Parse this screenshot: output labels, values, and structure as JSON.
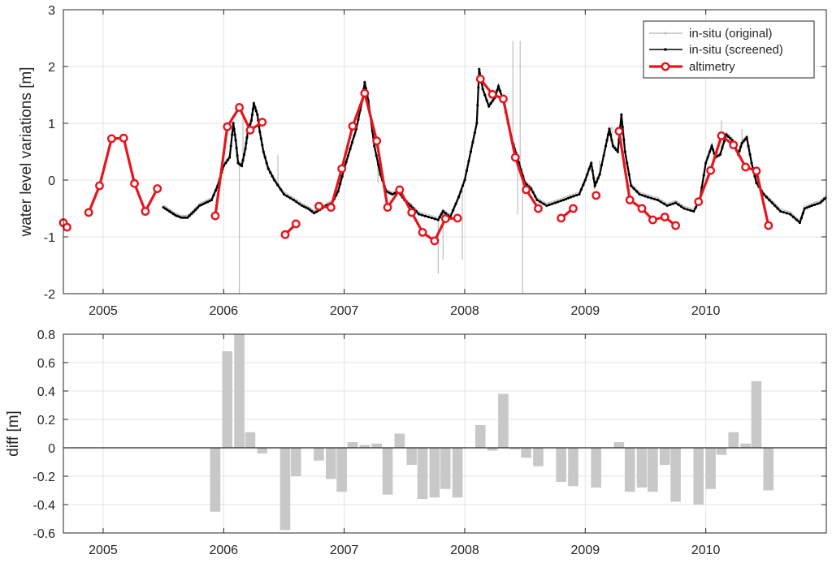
{
  "chart_data": [
    {
      "type": "line",
      "ylabel": "water level variations [m]",
      "xlim": [
        2004.67,
        2011.0
      ],
      "ylim": [
        -2,
        3
      ],
      "x_ticks": [
        2005,
        2006,
        2007,
        2008,
        2009,
        2010
      ],
      "x_tick_labels": [
        "2005",
        "2006",
        "2007",
        "2008",
        "2009",
        "2010"
      ],
      "y_ticks": [
        -2,
        -1,
        0,
        1,
        2,
        3
      ],
      "y_tick_labels": [
        "-2",
        "-1",
        "0",
        "1",
        "2",
        "3"
      ],
      "grid": true,
      "legend_position": "top-right",
      "legend": [
        "in-situ (original)",
        "in-situ (screened)",
        "altimetry"
      ],
      "colors": {
        "original": "#bdbdbd",
        "screened": "#000000",
        "altimetry": "#e8141c"
      },
      "series": [
        {
          "name": "in-situ (screened)",
          "points": [
            [
              2005.5,
              -0.48
            ],
            [
              2005.55,
              -0.55
            ],
            [
              2005.6,
              -0.62
            ],
            [
              2005.65,
              -0.66
            ],
            [
              2005.7,
              -0.66
            ],
            [
              2005.75,
              -0.56
            ],
            [
              2005.8,
              -0.45
            ],
            [
              2005.85,
              -0.4
            ],
            [
              2005.9,
              -0.35
            ],
            [
              2005.95,
              -0.1
            ],
            [
              2006.0,
              0.25
            ],
            [
              2006.05,
              0.4
            ],
            [
              2006.08,
              1.0
            ],
            [
              2006.1,
              0.7
            ],
            [
              2006.12,
              0.3
            ],
            [
              2006.15,
              0.25
            ],
            [
              2006.18,
              0.55
            ],
            [
              2006.2,
              0.85
            ],
            [
              2006.23,
              1.05
            ],
            [
              2006.25,
              1.35
            ],
            [
              2006.28,
              1.15
            ],
            [
              2006.3,
              0.85
            ],
            [
              2006.33,
              0.5
            ],
            [
              2006.37,
              0.2
            ],
            [
              2006.42,
              0.0
            ],
            [
              2006.5,
              -0.25
            ],
            [
              2006.58,
              -0.35
            ],
            [
              2006.65,
              -0.45
            ],
            [
              2006.7,
              -0.5
            ],
            [
              2006.75,
              -0.58
            ],
            [
              2006.8,
              -0.52
            ],
            [
              2006.85,
              -0.45
            ],
            [
              2006.9,
              -0.4
            ],
            [
              2006.95,
              -0.2
            ],
            [
              2007.0,
              0.2
            ],
            [
              2007.05,
              0.55
            ],
            [
              2007.1,
              0.9
            ],
            [
              2007.15,
              1.4
            ],
            [
              2007.17,
              1.72
            ],
            [
              2007.2,
              1.4
            ],
            [
              2007.25,
              0.6
            ],
            [
              2007.3,
              0.1
            ],
            [
              2007.35,
              -0.2
            ],
            [
              2007.4,
              -0.25
            ],
            [
              2007.45,
              -0.2
            ],
            [
              2007.5,
              -0.35
            ],
            [
              2007.55,
              -0.45
            ],
            [
              2007.62,
              -0.6
            ],
            [
              2007.7,
              -0.65
            ],
            [
              2007.78,
              -0.7
            ],
            [
              2007.82,
              -0.55
            ],
            [
              2007.88,
              -0.65
            ],
            [
              2007.95,
              -0.3
            ],
            [
              2008.0,
              0.0
            ],
            [
              2008.05,
              0.5
            ],
            [
              2008.1,
              1.0
            ],
            [
              2008.12,
              1.95
            ],
            [
              2008.15,
              1.6
            ],
            [
              2008.2,
              1.3
            ],
            [
              2008.25,
              1.45
            ],
            [
              2008.28,
              1.65
            ],
            [
              2008.32,
              1.4
            ],
            [
              2008.38,
              0.8
            ],
            [
              2008.45,
              0.3
            ],
            [
              2008.5,
              -0.05
            ],
            [
              2008.55,
              -0.15
            ],
            [
              2008.6,
              -0.35
            ],
            [
              2008.68,
              -0.45
            ],
            [
              2008.75,
              -0.4
            ],
            [
              2008.82,
              -0.35
            ],
            [
              2008.88,
              -0.3
            ],
            [
              2008.95,
              -0.25
            ],
            [
              2009.0,
              0.0
            ],
            [
              2009.05,
              0.3
            ],
            [
              2009.08,
              -0.1
            ],
            [
              2009.12,
              0.1
            ],
            [
              2009.17,
              0.6
            ],
            [
              2009.2,
              0.9
            ],
            [
              2009.23,
              0.6
            ],
            [
              2009.27,
              0.5
            ],
            [
              2009.3,
              1.15
            ],
            [
              2009.33,
              0.5
            ],
            [
              2009.38,
              -0.1
            ],
            [
              2009.45,
              -0.25
            ],
            [
              2009.52,
              -0.3
            ],
            [
              2009.6,
              -0.35
            ],
            [
              2009.68,
              -0.45
            ],
            [
              2009.75,
              -0.4
            ],
            [
              2009.82,
              -0.5
            ],
            [
              2009.9,
              -0.55
            ],
            [
              2009.95,
              -0.35
            ],
            [
              2010.0,
              0.3
            ],
            [
              2010.05,
              0.6
            ],
            [
              2010.08,
              0.4
            ],
            [
              2010.12,
              0.45
            ],
            [
              2010.17,
              0.8
            ],
            [
              2010.22,
              0.7
            ],
            [
              2010.27,
              0.45
            ],
            [
              2010.3,
              0.65
            ],
            [
              2010.34,
              0.75
            ],
            [
              2010.38,
              0.3
            ],
            [
              2010.42,
              -0.05
            ],
            [
              2010.48,
              -0.25
            ],
            [
              2010.55,
              -0.4
            ],
            [
              2010.62,
              -0.55
            ],
            [
              2010.7,
              -0.6
            ],
            [
              2010.78,
              -0.75
            ],
            [
              2010.82,
              -0.5
            ],
            [
              2010.88,
              -0.45
            ],
            [
              2010.95,
              -0.4
            ],
            [
              2011.0,
              -0.3
            ]
          ]
        },
        {
          "name": "in-situ (original)",
          "spikes": [
            [
              2006.08,
              0.9
            ],
            [
              2006.13,
              -2.0
            ],
            [
              2006.16,
              1.1
            ],
            [
              2006.45,
              0.45
            ],
            [
              2006.9,
              -0.4
            ],
            [
              2007.1,
              0.8
            ],
            [
              2007.28,
              -0.05
            ],
            [
              2007.45,
              -0.1
            ],
            [
              2007.78,
              -1.65
            ],
            [
              2007.82,
              -1.4
            ],
            [
              2007.98,
              -1.4
            ],
            [
              2008.4,
              2.45
            ],
            [
              2008.44,
              -0.6
            ],
            [
              2008.46,
              2.45
            ],
            [
              2008.48,
              -2.0
            ],
            [
              2009.12,
              0.35
            ],
            [
              2009.22,
              0.95
            ],
            [
              2009.3,
              1.15
            ],
            [
              2010.13,
              1.05
            ],
            [
              2010.3,
              0.9
            ],
            [
              2010.42,
              0.15
            ]
          ]
        },
        {
          "name": "altimetry",
          "segments": [
            [
              [
                2004.67,
                -0.75
              ],
              [
                2004.7,
                -0.83
              ]
            ],
            [
              [
                2004.88,
                -0.57
              ],
              [
                2004.97,
                -0.1
              ],
              [
                2005.07,
                0.73
              ],
              [
                2005.17,
                0.74
              ],
              [
                2005.26,
                -0.06
              ],
              [
                2005.35,
                -0.55
              ],
              [
                2005.45,
                -0.15
              ]
            ],
            [
              [
                2005.93,
                -0.63
              ],
              [
                2006.03,
                0.94
              ],
              [
                2006.13,
                1.28
              ],
              [
                2006.22,
                0.88
              ],
              [
                2006.32,
                1.02
              ]
            ],
            [
              [
                2006.51,
                -0.96
              ],
              [
                2006.6,
                -0.77
              ]
            ],
            [
              [
                2006.79,
                -0.46
              ],
              [
                2006.89,
                -0.48
              ],
              [
                2006.98,
                0.2
              ],
              [
                2007.07,
                0.95
              ],
              [
                2007.17,
                1.53
              ],
              [
                2007.27,
                0.69
              ],
              [
                2007.36,
                -0.48
              ],
              [
                2007.46,
                -0.17
              ],
              [
                2007.56,
                -0.57
              ],
              [
                2007.65,
                -0.92
              ],
              [
                2007.75,
                -1.07
              ],
              [
                2007.84,
                -0.68
              ],
              [
                2007.94,
                -0.67
              ]
            ],
            [
              [
                2008.13,
                1.78
              ],
              [
                2008.23,
                1.51
              ],
              [
                2008.32,
                1.43
              ],
              [
                2008.42,
                0.4
              ],
              [
                2008.51,
                -0.17
              ],
              [
                2008.61,
                -0.5
              ]
            ],
            [
              [
                2008.8,
                -0.67
              ],
              [
                2008.9,
                -0.5
              ]
            ],
            [
              [
                2009.09,
                -0.27
              ]
            ],
            [
              [
                2009.28,
                0.86
              ],
              [
                2009.37,
                -0.35
              ],
              [
                2009.47,
                -0.5
              ],
              [
                2009.56,
                -0.7
              ],
              [
                2009.66,
                -0.65
              ],
              [
                2009.75,
                -0.8
              ]
            ],
            [
              [
                2009.94,
                -0.38
              ],
              [
                2010.04,
                0.17
              ],
              [
                2010.13,
                0.78
              ],
              [
                2010.23,
                0.62
              ],
              [
                2010.33,
                0.23
              ],
              [
                2010.42,
                0.16
              ],
              [
                2010.52,
                -0.8
              ]
            ]
          ]
        }
      ]
    },
    {
      "type": "bar",
      "ylabel": "diff [m]",
      "xlim": [
        2004.67,
        2011.0
      ],
      "ylim": [
        -0.6,
        0.8
      ],
      "x_ticks": [
        2005,
        2006,
        2007,
        2008,
        2009,
        2010
      ],
      "x_tick_labels": [
        "2005",
        "2006",
        "2007",
        "2008",
        "2009",
        "2010"
      ],
      "y_ticks": [
        -0.6,
        -0.4,
        -0.2,
        0,
        0.2,
        0.4,
        0.6,
        0.8
      ],
      "y_tick_labels": [
        "-0.6",
        "-0.4",
        "-0.2",
        "0",
        "0.2",
        "0.4",
        "0.6",
        "0.8"
      ],
      "grid": true,
      "bar_color": "#c8c8c8",
      "x": [
        2005.93,
        2006.03,
        2006.13,
        2006.22,
        2006.32,
        2006.51,
        2006.6,
        2006.79,
        2006.89,
        2006.98,
        2007.07,
        2007.17,
        2007.27,
        2007.36,
        2007.46,
        2007.56,
        2007.65,
        2007.75,
        2007.84,
        2007.94,
        2008.13,
        2008.23,
        2008.32,
        2008.42,
        2008.51,
        2008.61,
        2008.8,
        2008.9,
        2009.09,
        2009.28,
        2009.37,
        2009.47,
        2009.56,
        2009.66,
        2009.75,
        2009.94,
        2010.04,
        2010.13,
        2010.23,
        2010.33,
        2010.42,
        2010.52
      ],
      "values": [
        -0.45,
        0.68,
        0.8,
        0.11,
        -0.04,
        -0.58,
        -0.2,
        -0.09,
        -0.22,
        -0.31,
        0.04,
        0.02,
        0.03,
        -0.33,
        0.1,
        -0.12,
        -0.36,
        -0.35,
        -0.29,
        -0.35,
        0.16,
        -0.02,
        0.38,
        -0.01,
        -0.07,
        -0.13,
        -0.24,
        -0.27,
        -0.28,
        0.04,
        -0.31,
        -0.28,
        -0.31,
        -0.12,
        -0.38,
        -0.4,
        -0.29,
        -0.05,
        0.11,
        0.03,
        0.47,
        -0.3
      ]
    }
  ]
}
